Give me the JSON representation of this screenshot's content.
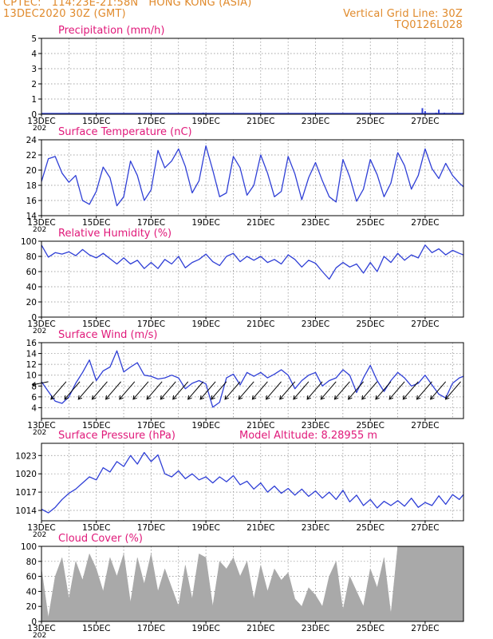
{
  "header": {
    "line1": "CPTEC:   114:23E-21:58N   HONG KONG (ASIA)",
    "line2": "13DEC2020 30Z (GMT)",
    "grid_note": "Vertical Grid Line: 30Z",
    "run_id": "TQ0126L028"
  },
  "colors": {
    "series": "#2f3fd6",
    "title": "#e0197a",
    "header": "#e08a2c",
    "cloud": "#a9a9a9",
    "grid": "#888888"
  },
  "x_axis": {
    "labels": [
      "13DEC",
      "15DEC",
      "17DEC",
      "19DEC",
      "21DEC",
      "23DEC",
      "25DEC",
      "27DEC"
    ],
    "start_day": 13,
    "end_day": 28.4,
    "year_fragment": "202"
  },
  "chart_data": [
    {
      "type": "bar",
      "title": "Precipitation (mm/h)",
      "ylim": [
        0,
        5
      ],
      "yticks": [
        0,
        1,
        2,
        3,
        4,
        5
      ],
      "x_days": [
        18.9,
        26.9,
        27.0,
        27.4,
        27.5,
        27.7
      ],
      "values": [
        0.1,
        0.4,
        0.2,
        0.1,
        0.3,
        0.1
      ]
    },
    {
      "type": "line",
      "title": "Surface Temperature (nC)",
      "ylim": [
        14,
        24
      ],
      "yticks": [
        14,
        16,
        18,
        20,
        22,
        24
      ],
      "x_days": [
        13.0,
        13.25,
        13.5,
        13.75,
        14.0,
        14.25,
        14.5,
        14.75,
        15.0,
        15.25,
        15.5,
        15.75,
        16.0,
        16.25,
        16.5,
        16.75,
        17.0,
        17.25,
        17.5,
        17.75,
        18.0,
        18.25,
        18.5,
        18.75,
        19.0,
        19.25,
        19.5,
        19.75,
        20.0,
        20.25,
        20.5,
        20.75,
        21.0,
        21.25,
        21.5,
        21.75,
        22.0,
        22.25,
        22.5,
        22.75,
        23.0,
        23.25,
        23.5,
        23.75,
        24.0,
        24.25,
        24.5,
        24.75,
        25.0,
        25.25,
        25.5,
        25.75,
        26.0,
        26.25,
        26.5,
        26.75,
        27.0,
        27.25,
        27.5,
        27.75,
        28.0,
        28.25,
        28.4
      ],
      "values": [
        18.5,
        21.5,
        21.8,
        19.6,
        18.4,
        19.3,
        16.0,
        15.5,
        17.2,
        20.4,
        19.0,
        15.3,
        16.5,
        21.2,
        19.3,
        16.0,
        17.4,
        22.6,
        20.3,
        21.2,
        22.8,
        20.5,
        17.0,
        18.6,
        23.2,
        20.0,
        16.5,
        17.0,
        21.8,
        20.3,
        16.7,
        18.0,
        22.0,
        19.6,
        16.5,
        17.2,
        21.8,
        19.5,
        16.1,
        19.0,
        21.0,
        18.6,
        16.5,
        15.8,
        21.4,
        19.1,
        15.9,
        17.5,
        21.4,
        19.4,
        16.5,
        18.3,
        22.3,
        20.6,
        17.5,
        19.3,
        22.8,
        20.2,
        18.9,
        20.9,
        19.3,
        18.3,
        17.8
      ]
    },
    {
      "type": "line",
      "title": "Relative Humidity (%)",
      "ylim": [
        0,
        100
      ],
      "yticks": [
        0,
        20,
        40,
        60,
        80,
        100
      ],
      "x_days": [
        13.0,
        13.25,
        13.5,
        13.75,
        14.0,
        14.25,
        14.5,
        14.75,
        15.0,
        15.25,
        15.5,
        15.75,
        16.0,
        16.25,
        16.5,
        16.75,
        17.0,
        17.25,
        17.5,
        17.75,
        18.0,
        18.25,
        18.5,
        18.75,
        19.0,
        19.25,
        19.5,
        19.75,
        20.0,
        20.25,
        20.5,
        20.75,
        21.0,
        21.25,
        21.5,
        21.75,
        22.0,
        22.25,
        22.5,
        22.75,
        23.0,
        23.25,
        23.5,
        23.75,
        24.0,
        24.25,
        24.5,
        24.75,
        25.0,
        25.25,
        25.5,
        25.75,
        26.0,
        26.25,
        26.5,
        26.75,
        27.0,
        27.25,
        27.5,
        27.75,
        28.0,
        28.25,
        28.4
      ],
      "values": [
        95,
        79,
        85,
        83,
        86,
        81,
        89,
        82,
        78,
        84,
        77,
        70,
        78,
        70,
        75,
        64,
        72,
        64,
        76,
        70,
        80,
        65,
        72,
        76,
        83,
        73,
        68,
        80,
        84,
        73,
        80,
        75,
        80,
        72,
        76,
        70,
        82,
        76,
        66,
        75,
        71,
        60,
        50,
        65,
        72,
        66,
        70,
        58,
        72,
        60,
        80,
        72,
        84,
        75,
        82,
        78,
        95,
        85,
        90,
        82,
        88,
        84,
        82
      ]
    },
    {
      "type": "line",
      "title": "Surface Wind (m/s)",
      "ylim": [
        2,
        16
      ],
      "yticks": [
        4,
        6,
        8,
        10,
        12,
        14,
        16
      ],
      "x_days": [
        13.0,
        13.25,
        13.5,
        13.75,
        14.0,
        14.25,
        14.5,
        14.75,
        15.0,
        15.25,
        15.5,
        15.75,
        16.0,
        16.25,
        16.5,
        16.75,
        17.0,
        17.25,
        17.5,
        17.75,
        18.0,
        18.25,
        18.5,
        18.75,
        19.0,
        19.25,
        19.5,
        19.75,
        20.0,
        20.25,
        20.5,
        20.75,
        21.0,
        21.25,
        21.5,
        21.75,
        22.0,
        22.25,
        22.5,
        22.75,
        23.0,
        23.25,
        23.5,
        23.75,
        24.0,
        24.25,
        24.5,
        24.75,
        25.0,
        25.25,
        25.5,
        25.75,
        26.0,
        26.25,
        26.5,
        26.75,
        27.0,
        27.25,
        27.5,
        27.75,
        28.0,
        28.25,
        28.4
      ],
      "values": [
        8.8,
        7.0,
        5.2,
        4.8,
        6.0,
        8.5,
        10.5,
        12.8,
        9.0,
        10.8,
        11.5,
        14.5,
        10.6,
        11.5,
        12.3,
        10.0,
        9.8,
        9.3,
        9.5,
        10.0,
        9.5,
        7.5,
        8.5,
        9.0,
        8.4,
        4.1,
        5.0,
        9.5,
        10.2,
        8.2,
        10.5,
        9.8,
        10.5,
        9.5,
        10.2,
        11.0,
        10.0,
        7.5,
        9.0,
        10.0,
        10.5,
        8.0,
        9.0,
        9.5,
        11.0,
        10.0,
        6.8,
        9.5,
        11.8,
        9.0,
        7.0,
        9.0,
        10.5,
        9.5,
        8.0,
        8.5,
        10.0,
        8.2,
        6.5,
        5.8,
        8.5,
        9.5,
        9.8
      ],
      "vectors_x_days": [
        13.25,
        13.9,
        14.4,
        14.9,
        15.4,
        15.9,
        16.4,
        16.9,
        17.4,
        17.9,
        18.35,
        18.9,
        19.35,
        19.75,
        20.25,
        20.75,
        21.25,
        21.75,
        22.25,
        22.75,
        23.25,
        23.75,
        24.25,
        24.75,
        25.25,
        25.75,
        26.25,
        26.75,
        27.25,
        27.75,
        28.3
      ]
    },
    {
      "type": "line",
      "title": "Surface Pressure (hPa)",
      "annotation": "Model Altitude: 8.28955 m",
      "ylim": [
        1012.3,
        1025
      ],
      "yticks": [
        1014,
        1017,
        1020,
        1023
      ],
      "x_days": [
        13.0,
        13.25,
        13.5,
        13.75,
        14.0,
        14.25,
        14.5,
        14.75,
        15.0,
        15.25,
        15.5,
        15.75,
        16.0,
        16.25,
        16.5,
        16.75,
        17.0,
        17.25,
        17.5,
        17.75,
        18.0,
        18.25,
        18.5,
        18.75,
        19.0,
        19.25,
        19.5,
        19.75,
        20.0,
        20.25,
        20.5,
        20.75,
        21.0,
        21.25,
        21.5,
        21.75,
        22.0,
        22.25,
        22.5,
        22.75,
        23.0,
        23.25,
        23.5,
        23.75,
        24.0,
        24.25,
        24.5,
        24.75,
        25.0,
        25.25,
        25.5,
        25.75,
        26.0,
        26.25,
        26.5,
        26.75,
        27.0,
        27.25,
        27.5,
        27.75,
        28.0,
        28.25,
        28.4
      ],
      "values": [
        1014.2,
        1013.6,
        1014.5,
        1015.8,
        1016.8,
        1017.5,
        1018.5,
        1019.5,
        1019.0,
        1021.0,
        1020.3,
        1022.0,
        1021.2,
        1023.0,
        1021.6,
        1023.5,
        1022.0,
        1023.1,
        1020.0,
        1019.5,
        1020.5,
        1019.2,
        1020.0,
        1019.0,
        1019.5,
        1018.5,
        1019.5,
        1018.7,
        1019.7,
        1018.2,
        1018.8,
        1017.5,
        1018.5,
        1017.0,
        1018.0,
        1016.8,
        1017.6,
        1016.5,
        1017.5,
        1016.3,
        1017.2,
        1016.0,
        1017.0,
        1015.8,
        1017.3,
        1015.4,
        1016.5,
        1014.8,
        1015.8,
        1014.4,
        1015.5,
        1014.8,
        1015.6,
        1014.7,
        1016.0,
        1014.5,
        1015.3,
        1014.8,
        1016.4,
        1015.0,
        1016.6,
        1015.8,
        1016.6
      ]
    },
    {
      "type": "area",
      "title": "Cloud Cover (%)",
      "ylim": [
        0,
        100
      ],
      "yticks": [
        0,
        20,
        40,
        60,
        80,
        100
      ],
      "x_days": [
        13.0,
        13.25,
        13.5,
        13.75,
        14.0,
        14.25,
        14.5,
        14.75,
        15.0,
        15.25,
        15.5,
        15.75,
        16.0,
        16.25,
        16.5,
        16.75,
        17.0,
        17.25,
        17.5,
        17.75,
        18.0,
        18.25,
        18.5,
        18.75,
        19.0,
        19.25,
        19.5,
        19.75,
        20.0,
        20.25,
        20.5,
        20.75,
        21.0,
        21.25,
        21.5,
        21.75,
        22.0,
        22.25,
        22.5,
        22.75,
        23.0,
        23.25,
        23.5,
        23.75,
        24.0,
        24.25,
        24.5,
        24.75,
        25.0,
        25.25,
        25.5,
        25.75,
        26.0,
        26.25,
        26.5,
        26.75,
        27.0,
        27.25,
        27.5,
        27.75,
        28.0,
        28.25,
        28.4
      ],
      "values": [
        70,
        5,
        60,
        85,
        30,
        80,
        55,
        90,
        70,
        40,
        85,
        60,
        90,
        25,
        85,
        50,
        90,
        40,
        70,
        45,
        20,
        75,
        30,
        90,
        85,
        20,
        80,
        70,
        85,
        60,
        80,
        30,
        75,
        40,
        70,
        55,
        65,
        30,
        20,
        45,
        35,
        20,
        60,
        80,
        15,
        60,
        40,
        20,
        70,
        45,
        85,
        10,
        100,
        100,
        100,
        100,
        100,
        100,
        100,
        100,
        100,
        100,
        100
      ]
    }
  ]
}
